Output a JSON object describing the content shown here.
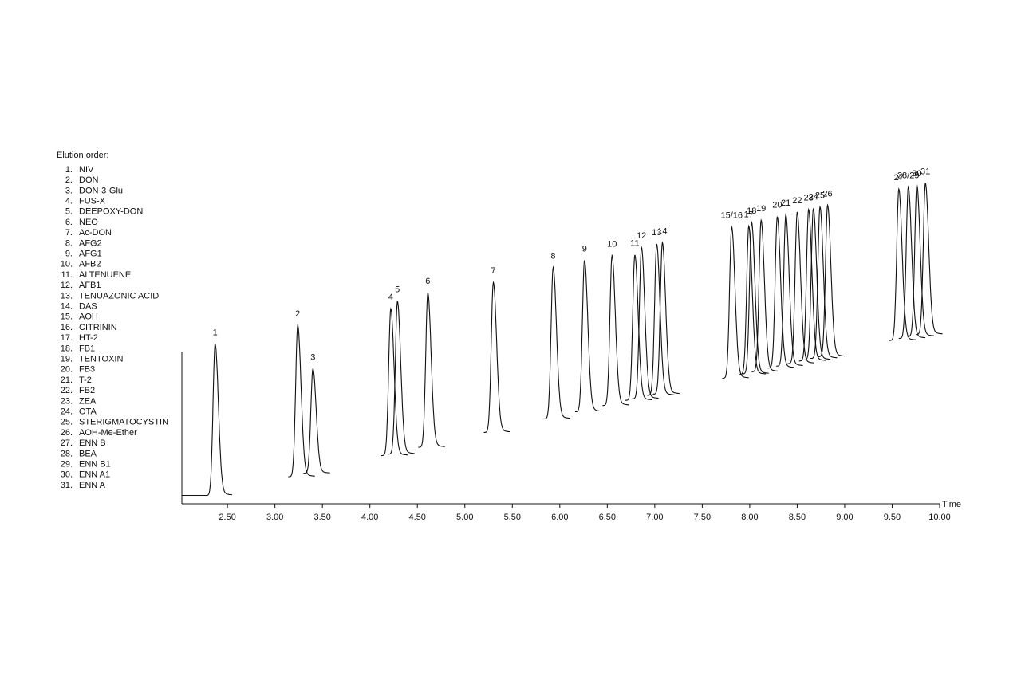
{
  "chart_data": {
    "type": "chromatogram",
    "legend_title": "Elution order:",
    "compound_numbers": [
      "1.",
      "2.",
      "3.",
      "4.",
      "5.",
      "6.",
      "7.",
      "8.",
      "9.",
      "10.",
      "11.",
      "12.",
      "13.",
      "14.",
      "15.",
      "16.",
      "17.",
      "18.",
      "19.",
      "20.",
      "21.",
      "22.",
      "23.",
      "24.",
      "25.",
      "26.",
      "27.",
      "28.",
      "29.",
      "30.",
      "31."
    ],
    "compounds": [
      "NIV",
      "DON",
      "DON-3-Glu",
      "FUS-X",
      "DEEPOXY-DON",
      "NEO",
      "Ac-DON",
      "AFG2",
      "AFG1",
      "AFB2",
      "ALTENUENE",
      "AFB1",
      "TENUAZONIC ACID",
      "DAS",
      "AOH",
      "CITRININ",
      "HT-2",
      "FB1",
      "TENTOXIN",
      "FB3",
      "T-2",
      "FB2",
      "ZEA",
      "OTA",
      "STERIGMATOCYSTIN",
      "AOH-Me-Ether",
      "ENN B",
      "BEA",
      "ENN B1",
      "ENN A1",
      "ENN A"
    ],
    "x_label": "Time",
    "xlim": [
      2.02,
      10.0
    ],
    "xticks": [
      {
        "value": 2.5,
        "label": "2.50"
      },
      {
        "value": 3,
        "label": "3.00"
      },
      {
        "value": 3.5,
        "label": "3.50"
      },
      {
        "value": 4,
        "label": "4.00"
      },
      {
        "value": 4.5,
        "label": "4.50"
      },
      {
        "value": 5,
        "label": "5.00"
      },
      {
        "value": 5.5,
        "label": "5.50"
      },
      {
        "value": 6,
        "label": "6.00"
      },
      {
        "value": 6.5,
        "label": "6.50"
      },
      {
        "value": 7,
        "label": "7.00"
      },
      {
        "value": 7.5,
        "label": "7.50"
      },
      {
        "value": 8,
        "label": "8.00"
      },
      {
        "value": 8.5,
        "label": "8.50"
      },
      {
        "value": 9,
        "label": "9.00"
      },
      {
        "value": 9.5,
        "label": "9.50"
      },
      {
        "value": 10,
        "label": "10.00"
      }
    ],
    "peak_labels": [
      "1",
      "2",
      "3",
      "4",
      "5",
      "6",
      "7",
      "8",
      "9",
      "10",
      "11",
      "12",
      "13",
      "14",
      "15/16",
      "17",
      "18",
      "19",
      "20",
      "21",
      "22",
      "23",
      "24",
      "25",
      "26",
      "27",
      "28/29",
      "30",
      "31"
    ],
    "x": [
      2.37,
      3.24,
      3.4,
      4.22,
      4.29,
      4.61,
      5.3,
      5.93,
      6.26,
      6.55,
      6.79,
      6.86,
      7.02,
      7.08,
      7.81,
      7.99,
      8.02,
      8.12,
      8.29,
      8.38,
      8.5,
      8.62,
      8.67,
      8.74,
      8.82,
      9.57,
      9.67,
      9.76,
      9.85
    ],
    "values": [
      100,
      100,
      69,
      97,
      101,
      102,
      99,
      100,
      100,
      99,
      96,
      100,
      100,
      100,
      100,
      98,
      100,
      100,
      100,
      100,
      100,
      100,
      100,
      100,
      100,
      100,
      100,
      100,
      100
    ],
    "color": "#111111"
  }
}
